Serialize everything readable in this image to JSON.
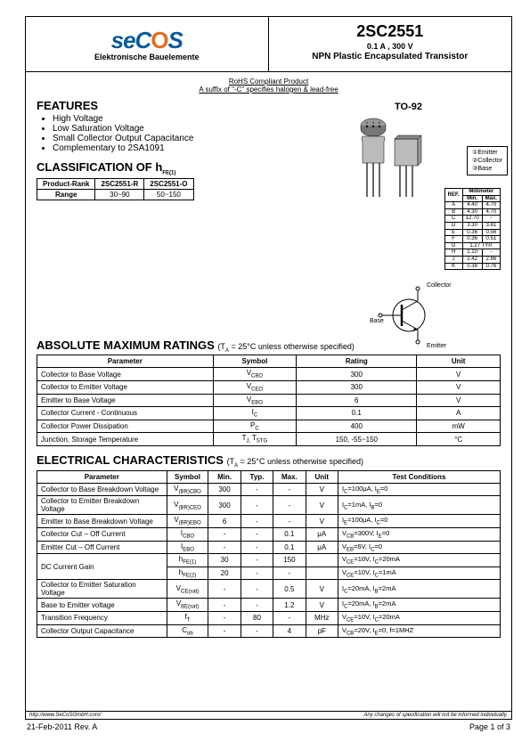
{
  "logo": {
    "text_pre": "seC",
    "text_o": "O",
    "text_post": "S",
    "subtitle": "Elektronische Bauelemente"
  },
  "header": {
    "part": "2SC2551",
    "spec": "0.1 A , 300 V",
    "desc": "NPN Plastic Encapsulated Transistor"
  },
  "rohs": {
    "line1": "RoHS Compliant Product",
    "line2": "A suffix of \"-C\" specifies halogen & lead-free"
  },
  "features": {
    "title": "FEATURES",
    "items": [
      "High Voltage",
      "Low Saturation Voltage",
      "Small Collector Output Capacitance",
      "Complementary to 2SA1091"
    ]
  },
  "pkg": {
    "label": "TO-92",
    "pins": [
      "①Emitter",
      "②Collector",
      "③Base"
    ],
    "circuit": {
      "c": "Collector",
      "b": "Base",
      "e": "Emitter"
    }
  },
  "dim": {
    "header": [
      "REF.",
      "Millimeter"
    ],
    "sub": [
      "Min.",
      "Max."
    ],
    "rows": [
      [
        "A",
        "4.40",
        "4.70"
      ],
      [
        "B",
        "4.30",
        "4.70"
      ],
      [
        "C",
        "12.70",
        "-"
      ],
      [
        "D",
        "3.30",
        "3.81"
      ],
      [
        "E",
        "0.36",
        "0.56"
      ],
      [
        "F",
        "0.36",
        "0.51"
      ],
      [
        "G",
        "1.27 TYP.",
        ""
      ],
      [
        "H",
        "1.10",
        "-"
      ],
      [
        "J",
        "2.42",
        "2.66"
      ],
      [
        "K",
        "0.38",
        "0.76"
      ]
    ]
  },
  "classification": {
    "title": "CLASSIFICATION OF h",
    "title_sub": "FE(1)",
    "headers": [
      "Product-Rank",
      "2SC2551-R",
      "2SC2551-O"
    ],
    "row": [
      "Range",
      "30~90",
      "50~150"
    ]
  },
  "amr": {
    "title": "ABSOLUTE MAXIMUM RATINGS",
    "cond": "(T",
    "cond_sub": "A",
    "cond2": " = 25°C unless otherwise specified)",
    "headers": [
      "Parameter",
      "Symbol",
      "Rating",
      "Unit"
    ],
    "rows": [
      {
        "p": "Collector to Base Voltage",
        "s": "V",
        "ss": "CBO",
        "r": "300",
        "u": "V"
      },
      {
        "p": "Collector to Emitter Voltage",
        "s": "V",
        "ss": "CEO",
        "r": "300",
        "u": "V"
      },
      {
        "p": "Emitter to Base Voltage",
        "s": "V",
        "ss": "EBO",
        "r": "6",
        "u": "V"
      },
      {
        "p": "Collector Current - Continuous",
        "s": "I",
        "ss": "C",
        "r": "0.1",
        "u": "A"
      },
      {
        "p": "Collector Power Dissipation",
        "s": "P",
        "ss": "C",
        "r": "400",
        "u": "mW"
      },
      {
        "p": "Junction, Storage Temperature",
        "s": "T",
        "ss": "J, ",
        "s2": "T",
        "ss2": "STG",
        "r": "150, -55~150",
        "u": "°C"
      }
    ]
  },
  "ec": {
    "title": "ELECTRICAL CHARACTERISTICS",
    "cond": "(T",
    "cond_sub": "A",
    "cond2": " = 25°C unless otherwise specified)",
    "headers": [
      "Parameter",
      "Symbol",
      "Min.",
      "Typ.",
      "Max.",
      "Unit",
      "Test Conditions"
    ],
    "rows": [
      {
        "p": "Collector to Base Breakdown Voltage",
        "s": "V",
        "ss": "(BR)CBO",
        "min": "300",
        "typ": "-",
        "max": "-",
        "u": "V",
        "tc": "I_C=100μA, I_E=0"
      },
      {
        "p": "Collector to Emitter Breakdown Voltage",
        "s": "V",
        "ss": "(BR)CEO",
        "min": "300",
        "typ": "-",
        "max": "-",
        "u": "V",
        "tc": "I_C=1mA, I_B=0"
      },
      {
        "p": "Emitter to Base Breakdown Voltage",
        "s": "V",
        "ss": "(BR)EBO",
        "min": "6",
        "typ": "-",
        "max": "-",
        "u": "V",
        "tc": "I_E=100μA, I_C=0"
      },
      {
        "p": "Collector Cut – Off Current",
        "s": "I",
        "ss": "CBO",
        "min": "-",
        "typ": "-",
        "max": "0.1",
        "u": "μA",
        "tc": "V_CB=300V, I_E=0"
      },
      {
        "p": "Emitter Cut – Off Current",
        "s": "I",
        "ss": "EBO",
        "min": "-",
        "typ": "-",
        "max": "0.1",
        "u": "μA",
        "tc": "V_EB=6V, I_C=0"
      },
      {
        "p": "DC Current Gain",
        "s": "h",
        "ss": "FE(1)",
        "min": "30",
        "typ": "-",
        "max": "150",
        "u": "",
        "tc": "V_CE=10V, I_C=20mA",
        "rowspan": 2
      },
      {
        "p": "",
        "s": "h",
        "ss": "FE(2)",
        "min": "20",
        "typ": "-",
        "max": "-",
        "u": "",
        "tc": "V_CE=10V, I_C=1mA"
      },
      {
        "p": "Collector to Emitter Saturation Voltage",
        "s": "V",
        "ss": "CE(sat)",
        "min": "-",
        "typ": "-",
        "max": "0.5",
        "u": "V",
        "tc": "I_C=20mA, I_B=2mA"
      },
      {
        "p": "Base to Emitter voltage",
        "s": "V",
        "ss": "BE(sat)",
        "min": "-",
        "typ": "-",
        "max": "1.2",
        "u": "V",
        "tc": "I_C=20mA, I_B=2mA"
      },
      {
        "p": "Transition Frequency",
        "s": "f",
        "ss": "T",
        "min": "-",
        "typ": "80",
        "max": "-",
        "u": "MHz",
        "tc": "V_CE=10V, I_C=20mA"
      },
      {
        "p": "Collector Output Capacitance",
        "s": "C",
        "ss": "ob",
        "min": "-",
        "typ": "-",
        "max": "4",
        "u": "pF",
        "tc": "V_CB=20V, I_E=0, f=1MHZ"
      }
    ]
  },
  "footer": {
    "url": "http://www.SeCoSGmbH.com/",
    "disclaimer": "Any changes of specification will not be informed individually.",
    "date": "21-Feb-2011 Rev. A",
    "page": "Page 1 of 3"
  }
}
